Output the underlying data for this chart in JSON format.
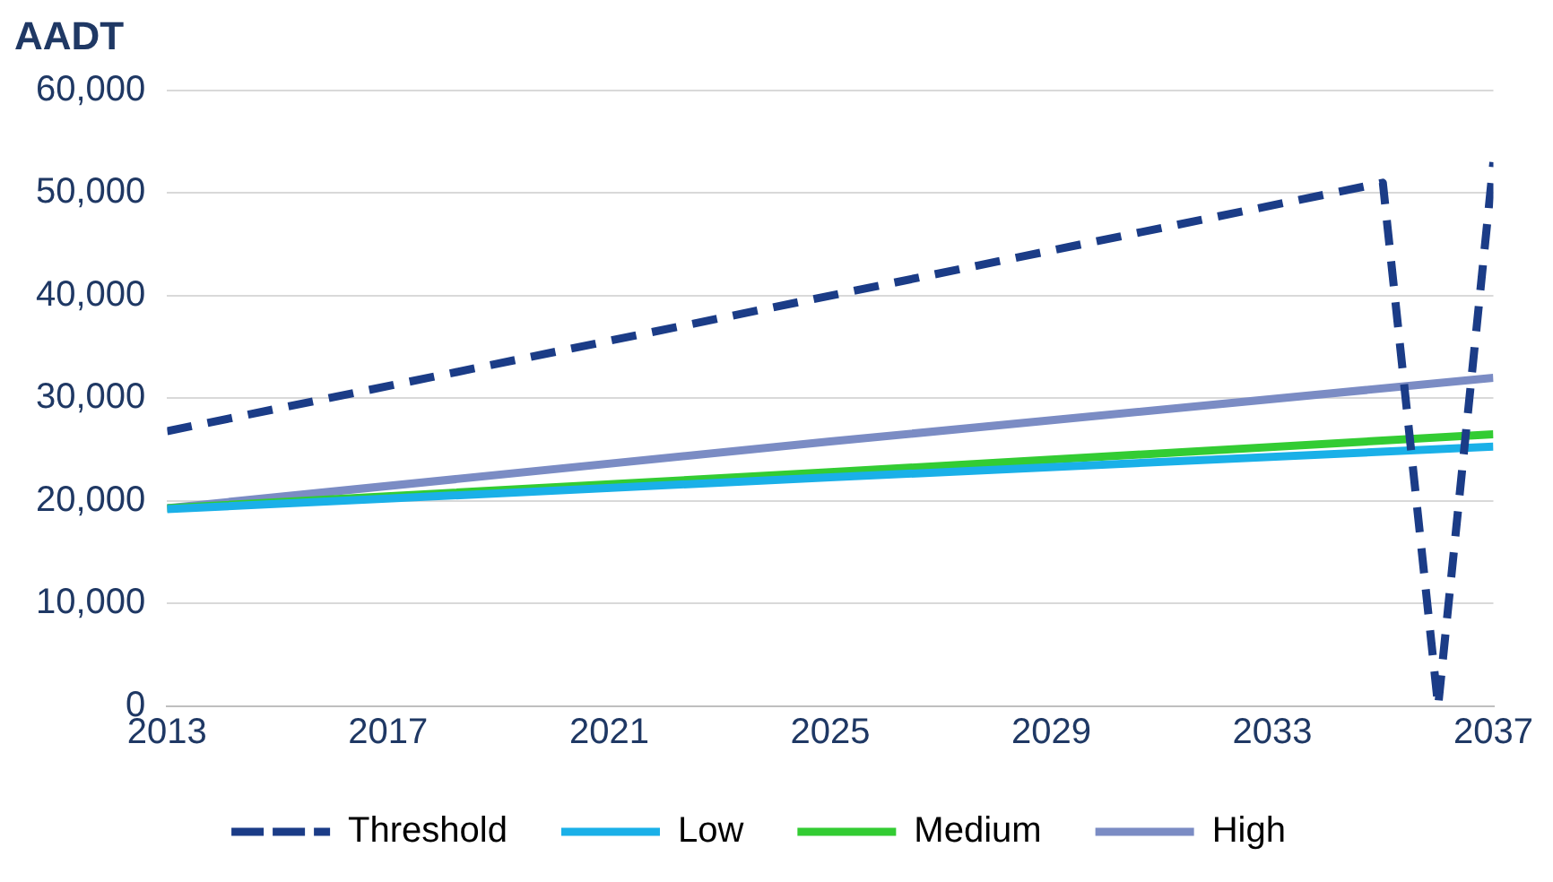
{
  "chart_data": {
    "type": "line",
    "title": "AADT",
    "x": [
      2013,
      2025,
      2037
    ],
    "series": [
      {
        "name": "Threshold",
        "color": "#1b3c87",
        "line_style": "dashed",
        "x": [
          2013,
          2035,
          2036,
          2037
        ],
        "values": [
          26800,
          51000,
          0,
          53000
        ]
      },
      {
        "name": "Low",
        "color": "#1ab0e8",
        "values": [
          19200,
          22300,
          25300
        ]
      },
      {
        "name": "Medium",
        "color": "#33cc33",
        "values": [
          19300,
          22800,
          26500
        ]
      },
      {
        "name": "High",
        "color": "#7b8cc4",
        "values": [
          19300,
          25800,
          32000
        ]
      }
    ],
    "xlim": [
      2013,
      2037
    ],
    "xticks": [
      2013,
      2017,
      2021,
      2025,
      2029,
      2033,
      2037
    ],
    "ylim": [
      0,
      60000
    ],
    "yticks": [
      {
        "value": 0,
        "label": "0"
      },
      {
        "value": 10000,
        "label": "10,000"
      },
      {
        "value": 20000,
        "label": "20,000"
      },
      {
        "value": 30000,
        "label": "30,000"
      },
      {
        "value": 40000,
        "label": "40,000"
      },
      {
        "value": 50000,
        "label": "50,000"
      },
      {
        "value": 60000,
        "label": "60,000"
      }
    ],
    "grid": "y",
    "legend": "bottom",
    "marker": "none"
  }
}
